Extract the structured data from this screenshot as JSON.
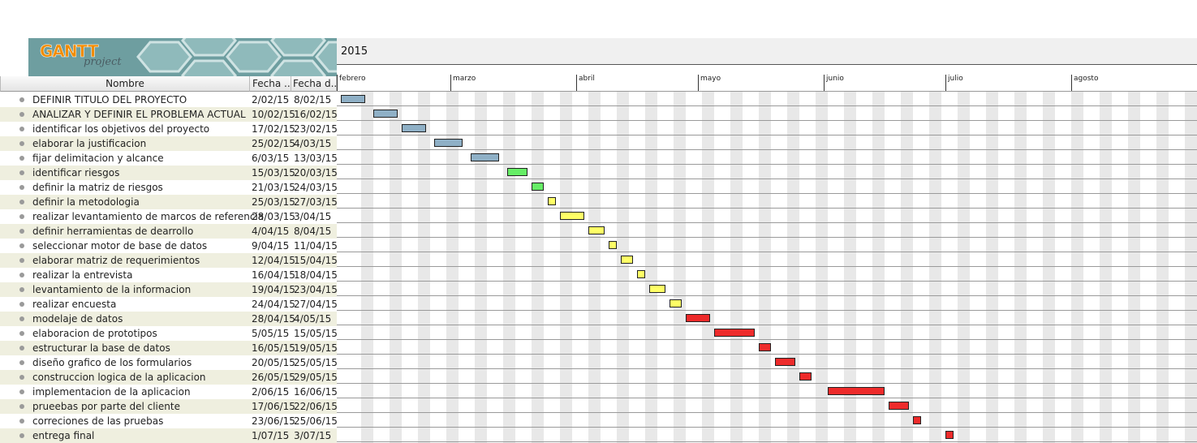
{
  "app": {
    "logo_text": "GANTT",
    "logo_subtext": "project"
  },
  "columns": {
    "name": "Nombre",
    "start": "Fecha ...",
    "end": "Fecha d..."
  },
  "timeline": {
    "year": "2015",
    "months": [
      "febrero",
      "marzo",
      "abril",
      "mayo",
      "junio",
      "julio",
      "agosto"
    ]
  },
  "colors": {
    "blue": "#8fb0c6",
    "green": "#66ee66",
    "yellow": "#ffff66",
    "red": "#ee2b2b"
  },
  "tasks": [
    {
      "name": "DEFINIR TITULO DEL PROYECTO",
      "start": "2/02/15",
      "end": "8/02/15",
      "color": "blue"
    },
    {
      "name": "ANALIZAR Y DEFINIR EL PROBLEMA  ACTUAL",
      "start": "10/02/15",
      "end": "16/02/15",
      "color": "blue"
    },
    {
      "name": "identificar los objetivos del proyecto",
      "start": "17/02/15",
      "end": "23/02/15",
      "color": "blue"
    },
    {
      "name": "elaborar la justificacion",
      "start": "25/02/15",
      "end": "4/03/15",
      "color": "blue"
    },
    {
      "name": "fijar delimitacion y alcance",
      "start": "6/03/15",
      "end": "13/03/15",
      "color": "blue"
    },
    {
      "name": "identificar riesgos",
      "start": "15/03/15",
      "end": "20/03/15",
      "color": "green"
    },
    {
      "name": "definir la matriz de riesgos",
      "start": "21/03/15",
      "end": "24/03/15",
      "color": "green"
    },
    {
      "name": "definir la metodologia",
      "start": "25/03/15",
      "end": "27/03/15",
      "color": "yellow"
    },
    {
      "name": "realizar levantamiento de marcos de referencia",
      "start": "28/03/15",
      "end": "3/04/15",
      "color": "yellow"
    },
    {
      "name": "definir herramientas de dearrollo",
      "start": "4/04/15",
      "end": "8/04/15",
      "color": "yellow"
    },
    {
      "name": "seleccionar motor de base de datos",
      "start": "9/04/15",
      "end": "11/04/15",
      "color": "yellow"
    },
    {
      "name": "elaborar matriz de requerimientos",
      "start": "12/04/15",
      "end": "15/04/15",
      "color": "yellow"
    },
    {
      "name": "realizar la entrevista",
      "start": "16/04/15",
      "end": "18/04/15",
      "color": "yellow"
    },
    {
      "name": "levantamiento de la informacion",
      "start": "19/04/15",
      "end": "23/04/15",
      "color": "yellow"
    },
    {
      "name": "realizar encuesta",
      "start": "24/04/15",
      "end": "27/04/15",
      "color": "yellow"
    },
    {
      "name": "modelaje de datos",
      "start": "28/04/15",
      "end": "4/05/15",
      "color": "red"
    },
    {
      "name": "elaboracion de prototipos",
      "start": "5/05/15",
      "end": "15/05/15",
      "color": "red"
    },
    {
      "name": "estructurar la base de datos",
      "start": "16/05/15",
      "end": "19/05/15",
      "color": "red"
    },
    {
      "name": "diseño grafico de los formularios",
      "start": "20/05/15",
      "end": "25/05/15",
      "color": "red"
    },
    {
      "name": "construccion logica de la aplicacion",
      "start": "26/05/15",
      "end": "29/05/15",
      "color": "red"
    },
    {
      "name": "implementacion de la aplicacion",
      "start": "2/06/15",
      "end": "16/06/15",
      "color": "red"
    },
    {
      "name": "prueebas por parte del cliente",
      "start": "17/06/15",
      "end": "22/06/15",
      "color": "red"
    },
    {
      "name": "correciones de las pruebas",
      "start": "23/06/15",
      "end": "25/06/15",
      "color": "red"
    },
    {
      "name": "entrega final",
      "start": "1/07/15",
      "end": "3/07/15",
      "color": "red"
    }
  ]
}
